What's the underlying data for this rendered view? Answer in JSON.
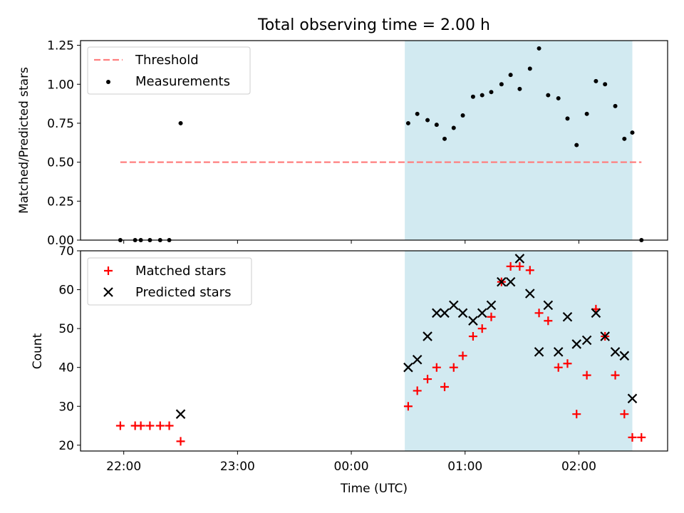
{
  "chart_data": [
    {
      "type": "scatter",
      "title": "Total observing time = 2.00 h",
      "ylabel": "Matched/Predicted stars",
      "xlabel": "",
      "ylim": [
        0,
        1.28
      ],
      "yticks": [
        "0.00",
        "0.25",
        "0.50",
        "0.75",
        "1.00",
        "1.25"
      ],
      "grid": false,
      "legend_position": "top-left",
      "shaded_span": {
        "x_start": 24.47,
        "x_end": 26.47,
        "color": "#add8e6"
      },
      "series": [
        {
          "name": "Threshold",
          "kind": "dashed-line",
          "color": "#ff7f7f",
          "x": [
            21.97,
            26.55
          ],
          "y": [
            0.5,
            0.5
          ]
        },
        {
          "name": "Measurements",
          "kind": "points",
          "color": "#000000",
          "x": [
            21.97,
            22.1,
            22.15,
            22.23,
            22.32,
            22.4,
            22.5,
            24.5,
            24.58,
            24.67,
            24.75,
            24.82,
            24.9,
            24.98,
            25.07,
            25.15,
            25.23,
            25.32,
            25.4,
            25.48,
            25.57,
            25.65,
            25.73,
            25.82,
            25.9,
            25.98,
            26.07,
            26.15,
            26.23,
            26.32,
            26.4,
            26.47,
            26.55
          ],
          "y": [
            0.0,
            0.0,
            0.0,
            0.0,
            0.0,
            0.0,
            0.75,
            0.75,
            0.81,
            0.77,
            0.74,
            0.65,
            0.72,
            0.8,
            0.92,
            0.93,
            0.95,
            1.0,
            1.06,
            0.97,
            1.1,
            1.23,
            0.93,
            0.91,
            0.78,
            0.61,
            0.81,
            1.02,
            1.0,
            0.86,
            0.65,
            0.69,
            0.0
          ]
        }
      ]
    },
    {
      "type": "scatter",
      "title": "",
      "ylabel": "Count",
      "xlabel": "Time (UTC)",
      "ylim": [
        18.5,
        70
      ],
      "yticks": [
        "20",
        "30",
        "40",
        "50",
        "60",
        "70"
      ],
      "x_range_hours": [
        21.62,
        26.78
      ],
      "xticks": [
        "22:00",
        "23:00",
        "00:00",
        "01:00",
        "02:00"
      ],
      "grid": false,
      "legend_position": "top-left",
      "shaded_span": {
        "x_start": 24.47,
        "x_end": 26.47,
        "color": "#add8e6"
      },
      "series": [
        {
          "name": "Matched stars",
          "marker": "plus",
          "color": "#ff0000",
          "x": [
            21.97,
            22.1,
            22.15,
            22.23,
            22.32,
            22.4,
            22.5,
            24.5,
            24.58,
            24.67,
            24.75,
            24.82,
            24.9,
            24.98,
            25.07,
            25.15,
            25.23,
            25.32,
            25.4,
            25.48,
            25.57,
            25.65,
            25.73,
            25.82,
            25.9,
            25.98,
            26.07,
            26.15,
            26.23,
            26.32,
            26.4,
            26.47,
            26.55
          ],
          "y": [
            25,
            25,
            25,
            25,
            25,
            25,
            21,
            30,
            34,
            37,
            40,
            35,
            40,
            43,
            48,
            50,
            53,
            62,
            66,
            66,
            65,
            54,
            52,
            40,
            41,
            28,
            38,
            55,
            48,
            38,
            28,
            22,
            22
          ]
        },
        {
          "name": "Predicted stars",
          "marker": "x",
          "color": "#000000",
          "x": [
            22.5,
            24.5,
            24.58,
            24.67,
            24.75,
            24.82,
            24.9,
            24.98,
            25.07,
            25.15,
            25.23,
            25.32,
            25.4,
            25.48,
            25.57,
            25.65,
            25.73,
            25.82,
            25.9,
            25.98,
            26.07,
            26.15,
            26.23,
            26.32,
            26.4,
            26.47
          ],
          "y": [
            28,
            40,
            42,
            48,
            54,
            54,
            56,
            54,
            52,
            54,
            56,
            62,
            62,
            68,
            59,
            44,
            56,
            44,
            53,
            46,
            47,
            54,
            48,
            44,
            43,
            32
          ]
        }
      ]
    }
  ]
}
